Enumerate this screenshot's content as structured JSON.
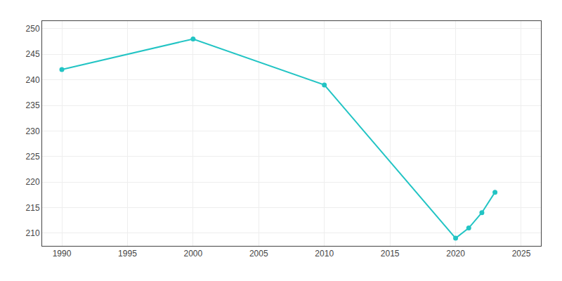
{
  "chart_data": {
    "type": "line",
    "x": [
      1990,
      2000,
      2010,
      2020,
      2021,
      2022,
      2023
    ],
    "values": [
      242,
      248,
      239,
      209,
      211,
      214,
      218
    ],
    "color": "#22C4C4",
    "marker": "circle",
    "xlim": [
      1988.5,
      2026.5
    ],
    "ylim": [
      207.5,
      251.5
    ],
    "xticks": [
      1990,
      1995,
      2000,
      2005,
      2010,
      2015,
      2020,
      2025
    ],
    "yticks": [
      210,
      215,
      220,
      225,
      230,
      235,
      240,
      245,
      250
    ],
    "grid": true
  }
}
